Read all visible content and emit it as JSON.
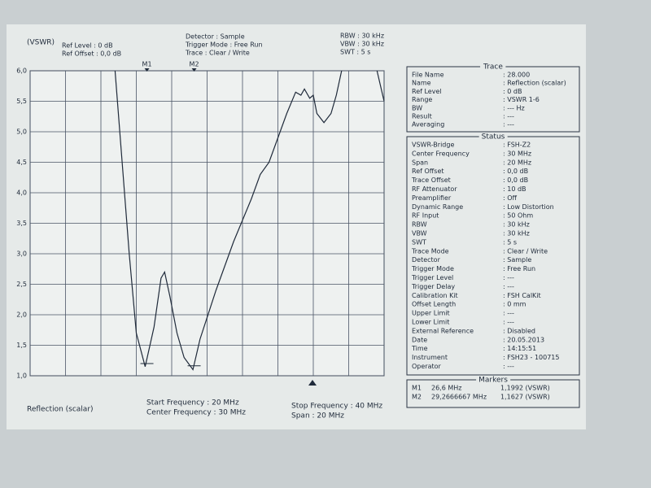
{
  "header": {
    "unit": "(VSWR)",
    "ref": [
      "Ref Level : 0  dB",
      "Ref Offset : 0,0 dB"
    ],
    "mode": [
      "Detector : Sample",
      "Trigger Mode : Free Run",
      "Trace : Clear / Write"
    ],
    "bw": [
      "RBW : 30 kHz",
      "VBW : 30 kHz",
      "SWT : 5 s"
    ]
  },
  "chart_data": {
    "type": "line",
    "x": [
      24.8,
      25.2,
      25.6,
      26.0,
      26.5,
      27.0,
      27.4,
      27.6,
      27.9,
      28.3,
      28.7,
      29.2,
      29.6,
      30.5,
      31.5,
      32.5,
      33.0,
      33.5,
      34.0,
      34.5,
      35.0,
      35.3,
      35.5,
      35.8,
      36.0,
      36.2,
      36.6,
      37.0,
      37.3,
      37.6,
      38.5,
      39.6,
      40.0
    ],
    "series": [
      {
        "name": "Reflection (scalar)",
        "color": "#1f2a3a",
        "values": [
          6.0,
          4.5,
          3.0,
          1.7,
          1.15,
          1.8,
          2.6,
          2.7,
          2.3,
          1.7,
          1.3,
          1.1,
          1.6,
          2.4,
          3.2,
          3.9,
          4.3,
          4.5,
          4.9,
          5.3,
          5.65,
          5.6,
          5.7,
          5.55,
          5.6,
          5.3,
          5.15,
          5.3,
          5.6,
          6.0,
          null,
          6.0,
          5.5
        ]
      }
    ],
    "xlim": [
      20,
      40
    ],
    "xticks": [
      20,
      22,
      24,
      26,
      28,
      30,
      32,
      34,
      36,
      38,
      40
    ],
    "ylim": [
      1,
      6
    ],
    "yticks": [
      {
        "value": 1,
        "label": "1,0"
      },
      {
        "value": 1.5,
        "label": "1,5"
      },
      {
        "value": 2,
        "label": "2,0"
      },
      {
        "value": 2.5,
        "label": "2,5"
      },
      {
        "value": 3,
        "label": "3,0"
      },
      {
        "value": 3.5,
        "label": "3,5"
      },
      {
        "value": 4,
        "label": "4,0"
      },
      {
        "value": 4.5,
        "label": "4,5"
      },
      {
        "value": 5,
        "label": "5,0"
      },
      {
        "value": 5.5,
        "label": "5,5"
      },
      {
        "value": 6,
        "label": "6,0"
      }
    ],
    "grid": true,
    "markers": [
      {
        "name": "M1",
        "x": 26.6,
        "value": 1.1992
      },
      {
        "name": "M2",
        "x": 29.2666667,
        "value": 1.1627
      }
    ]
  },
  "footer": {
    "label": "Reflection (scalar)",
    "left": [
      "Start Frequency : 20 MHz",
      "Center Frequency : 30 MHz"
    ],
    "right": [
      "Stop Frequency : 40 MHz",
      "Span : 20 MHz"
    ]
  },
  "trace_panel": {
    "title": "Trace",
    "rows": [
      [
        "File Name",
        ": 28.000"
      ],
      [
        "Name",
        ": Reflection (scalar)"
      ],
      [
        "Ref Level",
        ": 0  dB"
      ],
      [
        "Range",
        ": VSWR 1-6"
      ],
      [
        "BW",
        ": ---  Hz"
      ],
      [
        "Result",
        ": ---"
      ],
      [
        "Averaging",
        ": ---"
      ]
    ]
  },
  "status_panel": {
    "title": "Status",
    "rows": [
      [
        "VSWR-Bridge",
        ": FSH-Z2"
      ],
      [
        "Center Frequency",
        ": 30  MHz"
      ],
      [
        "Span",
        ": 20  MHz"
      ],
      [
        "Ref Offset",
        ": 0,0  dB"
      ],
      [
        "Trace Offset",
        ": 0,0  dB"
      ],
      [
        "RF Attenuator",
        ": 10  dB"
      ],
      [
        "Preamplifier",
        ": Off"
      ],
      [
        "Dynamic Range",
        ": Low Distortion"
      ],
      [
        "RF Input",
        ": 50  Ohm"
      ],
      [
        "RBW",
        ": 30  kHz"
      ],
      [
        "VBW",
        ": 30  kHz"
      ],
      [
        "SWT",
        ": 5  s"
      ],
      [
        "Trace Mode",
        ": Clear / Write"
      ],
      [
        "Detector",
        ": Sample"
      ],
      [
        "Trigger Mode",
        ": Free Run"
      ],
      [
        "Trigger Level",
        ": ---"
      ],
      [
        "Trigger Delay",
        ": ---"
      ],
      [
        "Calibration Kit",
        ": FSH CalKit"
      ],
      [
        "Offset Length",
        ": 0  mm"
      ],
      [
        "Upper Limit",
        ": ---"
      ],
      [
        "Lower Limit",
        ": ---"
      ],
      [
        "External Reference",
        ": Disabled"
      ],
      [
        "Date",
        ": 20.05.2013"
      ],
      [
        "Time",
        ": 14:15:51"
      ],
      [
        "Instrument",
        ": FSH23 - 100715"
      ],
      [
        "Operator",
        ": ---"
      ]
    ]
  },
  "markers_panel": {
    "title": "Markers",
    "rows": [
      [
        "M1",
        "26,6 MHz",
        "1,1992 (VSWR)"
      ],
      [
        "M2",
        "29,2666667 MHz",
        "1,1627 (VSWR)"
      ]
    ]
  }
}
